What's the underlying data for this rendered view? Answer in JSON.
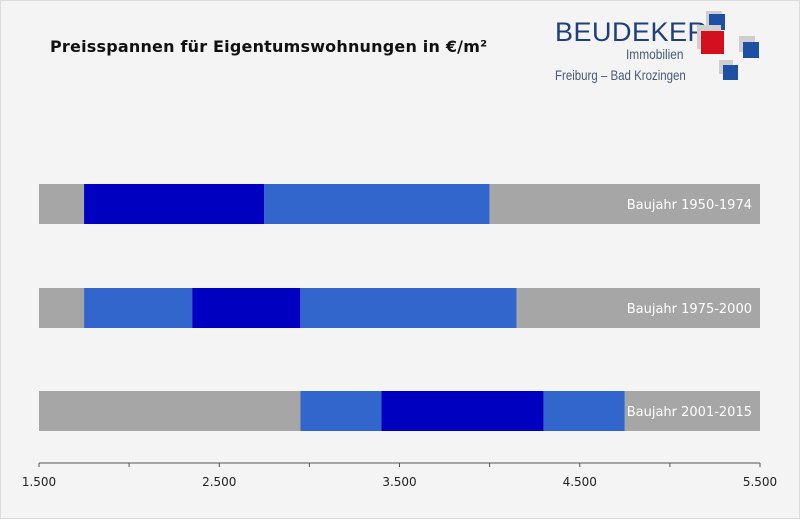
{
  "logo": {
    "name": "BEUDEKER",
    "subtitle": "Immobilien",
    "locations": "Freiburg  –  Bad Krozingen",
    "colors": {
      "red": "#d4101e",
      "blue": "#1f4fa3",
      "grey": "#c8c8c8"
    }
  },
  "chart_data": {
    "type": "bar",
    "orientation": "horizontal-stacked",
    "title": "Preisspannen für Eigentumswohnungen  in €/m²",
    "xlabel": "",
    "ylabel": "",
    "xlim": [
      1500,
      5500
    ],
    "x_ticks": [
      1500,
      2000,
      2500,
      3000,
      3500,
      4000,
      4500,
      5000,
      5500
    ],
    "x_tick_labels": [
      "1.500",
      "2.500",
      "3.500",
      "4.500",
      "5.500"
    ],
    "x_tick_label_values": [
      1500,
      2500,
      3500,
      4500,
      5500
    ],
    "grid": false,
    "colors": {
      "outside": "#a6a6a6",
      "range": "#3366cc",
      "core": "#0000c0"
    },
    "categories": [
      "Baujahr  1950-1974",
      "Baujahr  1975-2000",
      "Baujahr  2001-2015"
    ],
    "series": [
      {
        "category": "Baujahr  1950-1974",
        "segments": [
          {
            "kind": "outside",
            "from": 1500,
            "to": 1750
          },
          {
            "kind": "core",
            "from": 1750,
            "to": 2750
          },
          {
            "kind": "range",
            "from": 2750,
            "to": 4000
          },
          {
            "kind": "outside",
            "from": 4000,
            "to": 5500
          }
        ]
      },
      {
        "category": "Baujahr  1975-2000",
        "segments": [
          {
            "kind": "outside",
            "from": 1500,
            "to": 1750
          },
          {
            "kind": "range",
            "from": 1750,
            "to": 2350
          },
          {
            "kind": "core",
            "from": 2350,
            "to": 2950
          },
          {
            "kind": "range",
            "from": 2950,
            "to": 4150
          },
          {
            "kind": "outside",
            "from": 4150,
            "to": 5500
          }
        ]
      },
      {
        "category": "Baujahr  2001-2015",
        "segments": [
          {
            "kind": "outside",
            "from": 1500,
            "to": 2950
          },
          {
            "kind": "range",
            "from": 2950,
            "to": 3400
          },
          {
            "kind": "core",
            "from": 3400,
            "to": 4300
          },
          {
            "kind": "range",
            "from": 4300,
            "to": 4750
          },
          {
            "kind": "outside",
            "from": 4750,
            "to": 5500
          }
        ]
      }
    ]
  }
}
